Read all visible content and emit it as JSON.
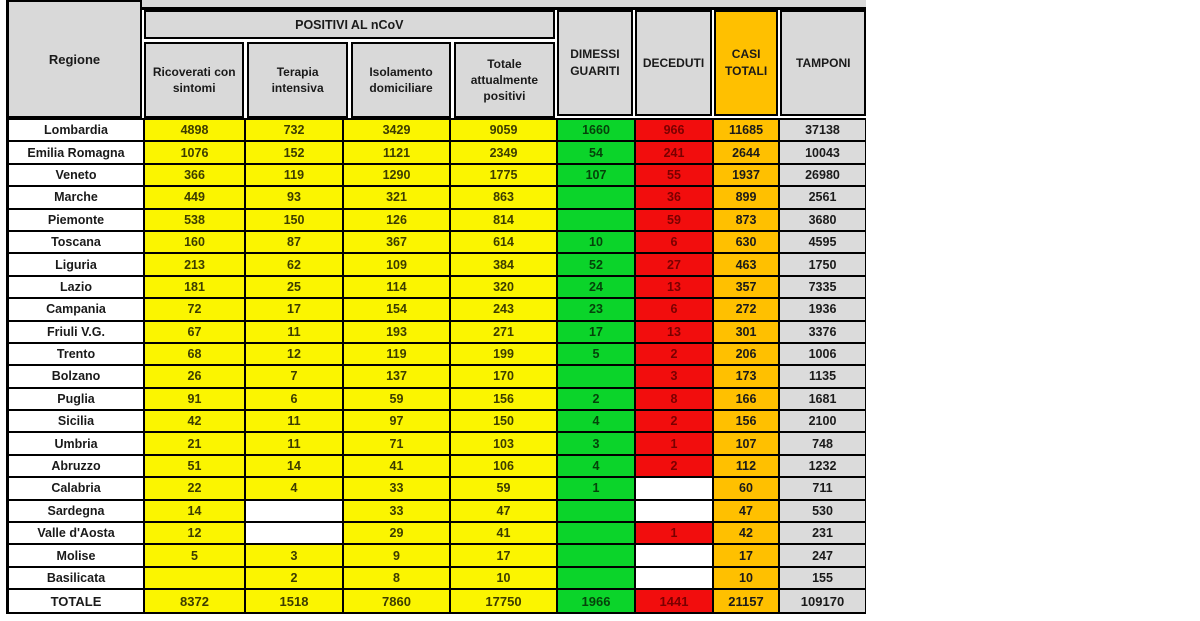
{
  "chart_data": {
    "type": "table",
    "group_header": "POSITIVI AL nCoV",
    "columns": [
      "Regione",
      "Ricoverati con sintomi",
      "Terapia intensiva",
      "Isolamento domiciliare",
      "Totale attualmente positivi",
      "DIMESSI GUARITI",
      "DECEDUTI",
      "CASI TOTALI",
      "TAMPONI"
    ],
    "rows": [
      {
        "regione": "Lombardia",
        "values": [
          4898,
          732,
          3429,
          9059,
          1660,
          966,
          11685,
          37138
        ],
        "white": []
      },
      {
        "regione": "Emilia Romagna",
        "values": [
          1076,
          152,
          1121,
          2349,
          54,
          241,
          2644,
          10043
        ],
        "white": []
      },
      {
        "regione": "Veneto",
        "values": [
          366,
          119,
          1290,
          1775,
          107,
          55,
          1937,
          26980
        ],
        "white": []
      },
      {
        "regione": "Marche",
        "values": [
          449,
          93,
          321,
          863,
          null,
          36,
          899,
          2561
        ],
        "white": []
      },
      {
        "regione": "Piemonte",
        "values": [
          538,
          150,
          126,
          814,
          null,
          59,
          873,
          3680
        ],
        "white": []
      },
      {
        "regione": "Toscana",
        "values": [
          160,
          87,
          367,
          614,
          10,
          6,
          630,
          4595
        ],
        "white": []
      },
      {
        "regione": "Liguria",
        "values": [
          213,
          62,
          109,
          384,
          52,
          27,
          463,
          1750
        ],
        "white": []
      },
      {
        "regione": "Lazio",
        "values": [
          181,
          25,
          114,
          320,
          24,
          13,
          357,
          7335
        ],
        "white": []
      },
      {
        "regione": "Campania",
        "values": [
          72,
          17,
          154,
          243,
          23,
          6,
          272,
          1936
        ],
        "white": []
      },
      {
        "regione": "Friuli V.G.",
        "values": [
          67,
          11,
          193,
          271,
          17,
          13,
          301,
          3376
        ],
        "white": []
      },
      {
        "regione": "Trento",
        "values": [
          68,
          12,
          119,
          199,
          5,
          2,
          206,
          1006
        ],
        "white": []
      },
      {
        "regione": "Bolzano",
        "values": [
          26,
          7,
          137,
          170,
          null,
          3,
          173,
          1135
        ],
        "white": []
      },
      {
        "regione": "Puglia",
        "values": [
          91,
          6,
          59,
          156,
          2,
          8,
          166,
          1681
        ],
        "white": []
      },
      {
        "regione": "Sicilia",
        "values": [
          42,
          11,
          97,
          150,
          4,
          2,
          156,
          2100
        ],
        "white": []
      },
      {
        "regione": "Umbria",
        "values": [
          21,
          11,
          71,
          103,
          3,
          1,
          107,
          748
        ],
        "white": []
      },
      {
        "regione": "Abruzzo",
        "values": [
          51,
          14,
          41,
          106,
          4,
          2,
          112,
          1232
        ],
        "white": []
      },
      {
        "regione": "Calabria",
        "values": [
          22,
          4,
          33,
          59,
          1,
          null,
          60,
          711
        ],
        "white": [
          5
        ]
      },
      {
        "regione": "Sardegna",
        "values": [
          14,
          null,
          33,
          47,
          null,
          null,
          47,
          530
        ],
        "white": [
          1,
          5
        ]
      },
      {
        "regione": "Valle d'Aosta",
        "values": [
          12,
          null,
          29,
          41,
          null,
          1,
          42,
          231
        ],
        "white": [
          1
        ]
      },
      {
        "regione": "Molise",
        "values": [
          5,
          3,
          9,
          17,
          null,
          null,
          17,
          247
        ],
        "white": [
          5
        ]
      },
      {
        "regione": "Basilicata",
        "values": [
          null,
          2,
          8,
          10,
          null,
          null,
          10,
          155
        ],
        "white": [
          5
        ]
      }
    ],
    "total_row": {
      "label": "TOTALE",
      "values": [
        8372,
        1518,
        7860,
        17750,
        1966,
        1441,
        21157,
        109170
      ]
    }
  },
  "colors": {
    "column_bg": [
      "#fbf500",
      "#fbf500",
      "#fbf500",
      "#fbf500",
      "#0bd42a",
      "#f20d0d",
      "#ffc000",
      "#dbdbdb"
    ],
    "column_fg": [
      "#3c3c00",
      "#3c3c00",
      "#3c3c00",
      "#3c3c00",
      "#05430a",
      "#7a0000",
      "#1a1a1a",
      "#1a1a1a"
    ],
    "blank_white": "#ffffff",
    "grid_line": "#000000",
    "header_bg": "#d9d9d9",
    "casi_header_bg": "#ffc000"
  }
}
